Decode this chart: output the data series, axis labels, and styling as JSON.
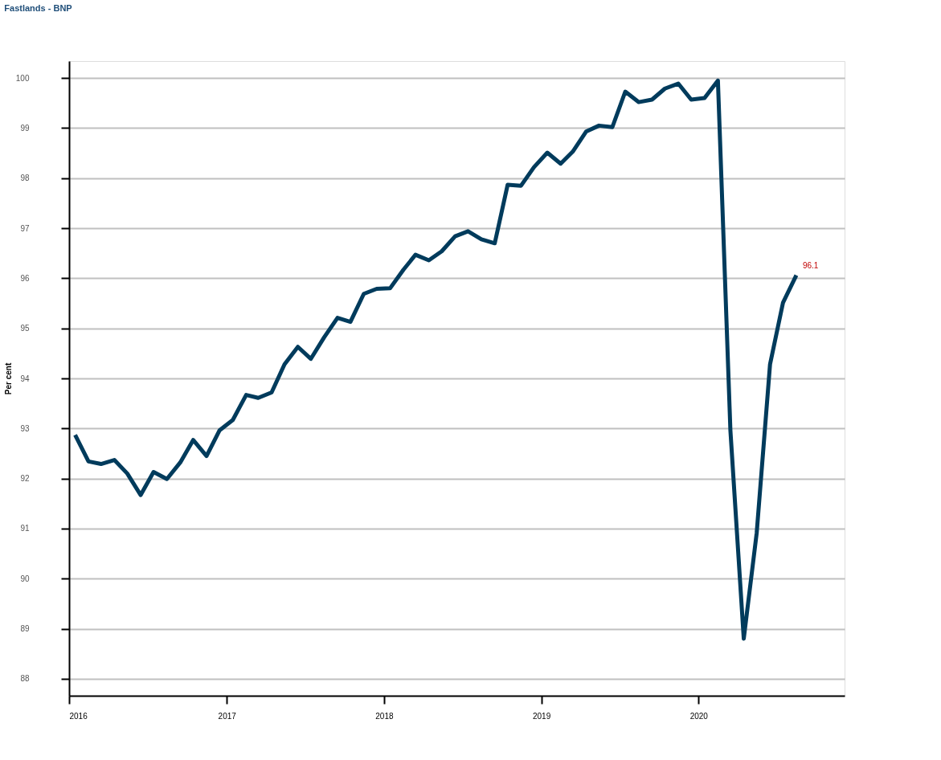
{
  "chart_data": {
    "type": "line",
    "title": "Fastlands - BNP",
    "ylabel": "Per cent",
    "x": [
      "2016-01-15",
      "2016-02-15",
      "2016-03-15",
      "2016-04-15",
      "2016-05-15",
      "2016-06-15",
      "2016-07-15",
      "2016-08-15",
      "2016-09-15",
      "2016-10-15",
      "2016-11-15",
      "2016-12-15",
      "2017-01-15",
      "2017-02-15",
      "2017-03-15",
      "2017-04-15",
      "2017-05-15",
      "2017-06-15",
      "2017-07-15",
      "2017-08-15",
      "2017-09-15",
      "2017-10-15",
      "2017-11-15",
      "2017-12-15",
      "2018-01-15",
      "2018-02-15",
      "2018-03-15",
      "2018-04-15",
      "2018-05-15",
      "2018-06-15",
      "2018-07-15",
      "2018-08-15",
      "2018-09-15",
      "2018-10-15",
      "2018-11-15",
      "2018-12-15",
      "2019-01-15",
      "2019-02-15",
      "2019-03-15",
      "2019-04-15",
      "2019-05-15",
      "2019-06-15",
      "2019-07-15",
      "2019-08-15",
      "2019-09-15",
      "2019-10-15",
      "2019-11-15",
      "2019-12-15",
      "2020-01-15",
      "2020-02-15",
      "2020-03-15",
      "2020-04-15",
      "2020-05-15",
      "2020-06-15",
      "2020-07-15",
      "2020-08-15"
    ],
    "series": [
      {
        "color": "#003b5c",
        "values": [
          92.87,
          92.34,
          92.29,
          92.37,
          92.1,
          91.67,
          92.13,
          91.99,
          92.32,
          92.77,
          92.45,
          92.96,
          93.17,
          93.67,
          93.61,
          93.72,
          94.28,
          94.63,
          94.39,
          94.82,
          95.21,
          95.13,
          95.69,
          95.79,
          95.8,
          96.17,
          96.47,
          96.36,
          96.54,
          96.84,
          96.94,
          96.78,
          96.7,
          97.87,
          97.85,
          98.22,
          98.51,
          98.29,
          98.53,
          98.93,
          99.05,
          99.02,
          99.73,
          99.52,
          99.57,
          99.79,
          99.89,
          99.57,
          99.6,
          99.95,
          92.96,
          88.8,
          90.91,
          94.28,
          95.51,
          96.06
        ]
      }
    ],
    "xlim": [
      "2016-01-01",
      "2020-12-05"
    ],
    "xticks": [
      {
        "value": "2016-01-01",
        "label": "2016"
      },
      {
        "value": "2017-01-01",
        "label": "2017"
      },
      {
        "value": "2018-01-01",
        "label": "2018"
      },
      {
        "value": "2019-01-01",
        "label": "2019"
      },
      {
        "value": "2020-01-01",
        "label": "2020"
      }
    ],
    "ylim": [
      87.66,
      100.34
    ],
    "yticks": [
      88,
      89,
      90,
      91,
      92,
      93,
      94,
      95,
      96,
      97,
      98,
      99,
      100
    ],
    "grid": "y",
    "marker": "none",
    "line_style": "solid",
    "annotations": [
      {
        "text": "96.1",
        "x": "2020-08-15",
        "y": 96.06
      }
    ]
  }
}
